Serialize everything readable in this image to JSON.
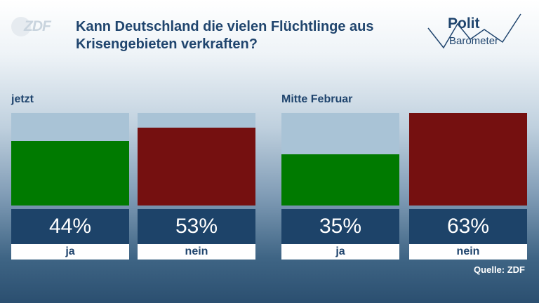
{
  "brand": {
    "logo_text": "ZDF"
  },
  "title": "Kann Deutschland die vielen Flüchtlinge aus Krisengebieten verkraften?",
  "badge": {
    "line1": "Polit",
    "line2": "Barometer"
  },
  "colors": {
    "ja": "#007a00",
    "nein": "#751010",
    "bar_bg": "#a9c3d6",
    "value_bg": "#1d4369"
  },
  "source": "Quelle: ZDF",
  "chart_data": [
    {
      "type": "bar",
      "title": "jetzt",
      "categories": [
        "ja",
        "nein"
      ],
      "values": [
        44,
        53
      ],
      "value_labels": [
        "44%",
        "53%"
      ],
      "ylim": [
        0,
        63
      ]
    },
    {
      "type": "bar",
      "title": "Mitte Februar",
      "categories": [
        "ja",
        "nein"
      ],
      "values": [
        35,
        63
      ],
      "value_labels": [
        "35%",
        "63%"
      ],
      "ylim": [
        0,
        63
      ]
    }
  ]
}
